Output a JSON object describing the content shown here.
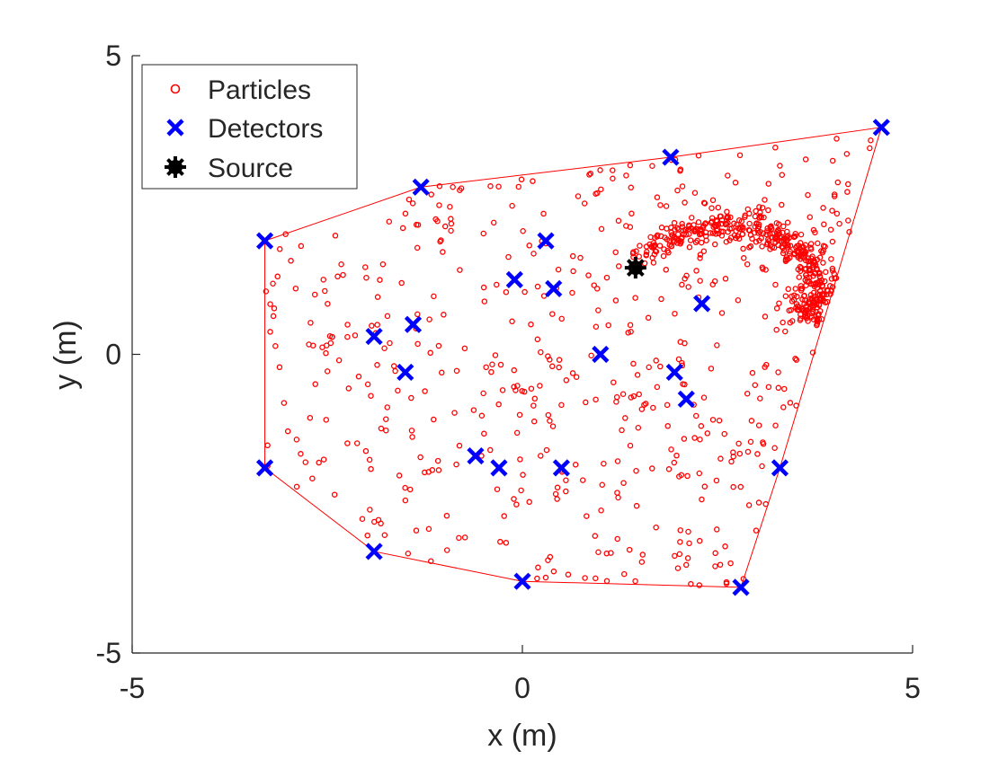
{
  "chart_data": {
    "type": "scatter",
    "title": "",
    "xlabel": "x (m)",
    "ylabel": "y (m)",
    "xlim": [
      -5,
      5
    ],
    "ylim": [
      -5,
      5
    ],
    "xticks": [
      -5,
      0,
      5
    ],
    "yticks": [
      -5,
      0,
      5
    ],
    "grid": false,
    "legend_position": "top-left",
    "legend": [
      {
        "name": "Particles",
        "marker": "circle-open",
        "color": "#ff0000"
      },
      {
        "name": "Detectors",
        "marker": "x",
        "color": "#0000ff"
      },
      {
        "name": "Source",
        "marker": "asterisk-filled",
        "color": "#000000"
      }
    ],
    "detectors": [
      {
        "x": -3.3,
        "y": 1.9
      },
      {
        "x": -1.3,
        "y": 2.8
      },
      {
        "x": 1.9,
        "y": 3.3
      },
      {
        "x": 4.6,
        "y": 3.8
      },
      {
        "x": -3.3,
        "y": -1.9
      },
      {
        "x": -1.9,
        "y": -3.3
      },
      {
        "x": 0.0,
        "y": -3.8
      },
      {
        "x": 2.8,
        "y": -3.9
      },
      {
        "x": 3.3,
        "y": -1.9
      },
      {
        "x": 0.3,
        "y": 1.9
      },
      {
        "x": -0.1,
        "y": 1.25
      },
      {
        "x": 0.4,
        "y": 1.1
      },
      {
        "x": 2.3,
        "y": 0.85
      },
      {
        "x": -1.4,
        "y": 0.5
      },
      {
        "x": -1.9,
        "y": 0.3
      },
      {
        "x": -1.5,
        "y": -0.3
      },
      {
        "x": 1.0,
        "y": 0.0
      },
      {
        "x": 1.95,
        "y": -0.3
      },
      {
        "x": 2.1,
        "y": -0.75
      },
      {
        "x": -0.6,
        "y": -1.7
      },
      {
        "x": -0.3,
        "y": -1.9
      },
      {
        "x": 0.5,
        "y": -1.9
      }
    ],
    "boundary_polygon_order": [
      0,
      1,
      2,
      3,
      8,
      7,
      6,
      5,
      4
    ],
    "source": {
      "x": 1.45,
      "y": 1.45
    },
    "particles": {
      "count_approx": 1000,
      "uniform_region": "spread over the detector boundary polygon",
      "cluster_arc": {
        "description": "dense arc of particles from the source toward the upper-right",
        "path": [
          [
            1.5,
            1.6
          ],
          [
            2.0,
            2.0
          ],
          [
            2.6,
            2.15
          ],
          [
            3.2,
            2.05
          ],
          [
            3.7,
            1.6
          ],
          [
            3.8,
            0.9
          ],
          [
            3.6,
            0.6
          ]
        ]
      }
    }
  }
}
